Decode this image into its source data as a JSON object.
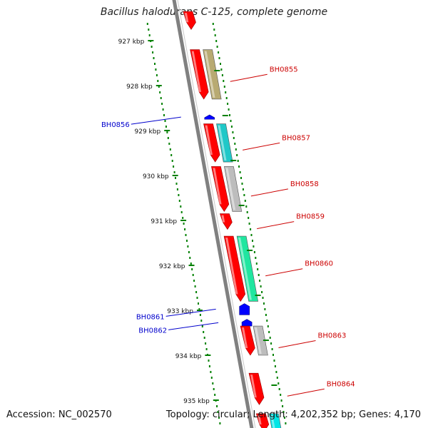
{
  "title": "Bacillus halodurans C-125, complete genome",
  "footer": {
    "accession": "Accession: NC_002570",
    "summary": "Topology: circular; Length: 4,202,352 bp; Genes: 4,170"
  },
  "colors": {
    "forward_gene": "#ff0000",
    "reverse_gene": "#0000ff",
    "backbone": "#808080",
    "ticks": "#008000",
    "label_forward": "#cc0000",
    "label_reverse": "#0000cc"
  },
  "axis_ticks": [
    {
      "label": "927 kbp",
      "kbp": 927
    },
    {
      "label": "928 kbp",
      "kbp": 928
    },
    {
      "label": "929 kbp",
      "kbp": 929
    },
    {
      "label": "930 kbp",
      "kbp": 930
    },
    {
      "label": "931 kbp",
      "kbp": 931
    },
    {
      "label": "932 kbp",
      "kbp": 932
    },
    {
      "label": "933 kbp",
      "kbp": 933
    },
    {
      "label": "934 kbp",
      "kbp": 934
    },
    {
      "label": "935 kbp",
      "kbp": 935
    }
  ],
  "genes": [
    {
      "label": "",
      "strand": "+",
      "start": 926.35,
      "end": 926.75,
      "feature_color": ""
    },
    {
      "label": "BH0855",
      "strand": "+",
      "start": 927.2,
      "end": 928.3,
      "feature_color": "#b8aa72"
    },
    {
      "label": "BH0856",
      "strand": "-",
      "start": 928.65,
      "end": 928.75,
      "feature_color": ""
    },
    {
      "label": "BH0857",
      "strand": "+",
      "start": 928.85,
      "end": 929.7,
      "feature_color": "#20c8c8"
    },
    {
      "label": "BH0858",
      "strand": "+",
      "start": 929.8,
      "end": 930.8,
      "feature_color": "#bdbdbd"
    },
    {
      "label": "BH0859",
      "strand": "+",
      "start": 930.85,
      "end": 931.2,
      "feature_color": ""
    },
    {
      "label": "BH0860",
      "strand": "+",
      "start": 931.35,
      "end": 932.8,
      "feature_color": "#20e6a0"
    },
    {
      "label": "BH0861",
      "strand": "-",
      "start": 932.85,
      "end": 933.1,
      "feature_color": ""
    },
    {
      "label": "BH0862",
      "strand": "-",
      "start": 933.2,
      "end": 933.35,
      "feature_color": ""
    },
    {
      "label": "BH0863",
      "strand": "+",
      "start": 933.35,
      "end": 934.0,
      "feature_color": "#bdbdbd"
    },
    {
      "label": "BH0864",
      "strand": "+",
      "start": 934.4,
      "end": 935.1,
      "feature_color": ""
    },
    {
      "label": "",
      "strand": "+",
      "start": 935.3,
      "end": 935.7,
      "feature_color": "#00e6e6"
    }
  ]
}
